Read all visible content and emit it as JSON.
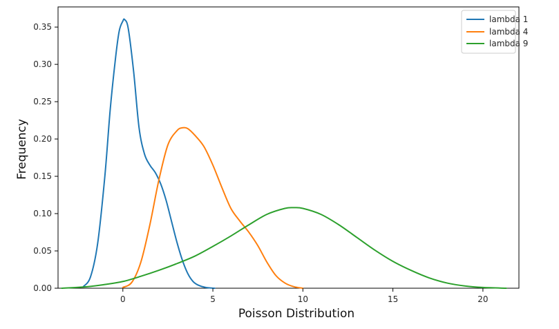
{
  "chart_data": {
    "type": "line",
    "title": "",
    "xlabel": "Poisson Distribution",
    "ylabel": "Frequency",
    "xlim": [
      -3.6,
      22
    ],
    "ylim": [
      0,
      0.377
    ],
    "x_ticks": [
      0,
      5,
      10,
      15,
      20
    ],
    "y_ticks": [
      0.0,
      0.05,
      0.1,
      0.15,
      0.2,
      0.25,
      0.3,
      0.35
    ],
    "x_tick_labels": [
      "0",
      "5",
      "10",
      "15",
      "20"
    ],
    "y_tick_labels": [
      "0.00",
      "0.05",
      "0.10",
      "0.15",
      "0.20",
      "0.25",
      "0.30",
      "0.35"
    ],
    "grid": false,
    "legend_position": "top-right",
    "series": [
      {
        "name": "lambda 1",
        "color": "#1f77b4",
        "x": [
          -2.2,
          -1.8,
          -1.4,
          -1.0,
          -0.7,
          -0.4,
          -0.2,
          0.0,
          0.1,
          0.3,
          0.6,
          0.9,
          1.2,
          1.5,
          1.8,
          2.1,
          2.4,
          2.7,
          3.0,
          3.3,
          3.6,
          3.9,
          4.2,
          4.6,
          5.1
        ],
        "y": [
          0.002,
          0.015,
          0.06,
          0.15,
          0.24,
          0.31,
          0.345,
          0.358,
          0.36,
          0.348,
          0.29,
          0.215,
          0.18,
          0.165,
          0.155,
          0.14,
          0.118,
          0.09,
          0.062,
          0.038,
          0.02,
          0.009,
          0.004,
          0.001,
          0.0
        ]
      },
      {
        "name": "lambda 4",
        "color": "#ff7f0e",
        "x": [
          0.0,
          0.5,
          1.0,
          1.5,
          2.0,
          2.5,
          3.0,
          3.3,
          3.6,
          4.0,
          4.5,
          5.0,
          5.5,
          6.0,
          6.5,
          7.0,
          7.5,
          8.0,
          8.5,
          9.0,
          9.5,
          10.0
        ],
        "y": [
          0.001,
          0.008,
          0.035,
          0.085,
          0.145,
          0.192,
          0.211,
          0.215,
          0.214,
          0.205,
          0.19,
          0.165,
          0.135,
          0.107,
          0.09,
          0.075,
          0.057,
          0.035,
          0.017,
          0.007,
          0.002,
          0.0
        ]
      },
      {
        "name": "lambda 9",
        "color": "#2ca02c",
        "x": [
          -3.4,
          -2.0,
          -1.0,
          0.0,
          1.0,
          2.0,
          3.0,
          4.0,
          5.0,
          6.0,
          7.0,
          8.0,
          9.0,
          9.5,
          10.0,
          11.0,
          12.0,
          13.0,
          14.0,
          15.0,
          16.0,
          17.0,
          18.0,
          19.0,
          20.0,
          21.3
        ],
        "y": [
          0.0,
          0.002,
          0.005,
          0.009,
          0.016,
          0.024,
          0.033,
          0.043,
          0.056,
          0.07,
          0.085,
          0.099,
          0.107,
          0.108,
          0.107,
          0.099,
          0.085,
          0.068,
          0.051,
          0.036,
          0.024,
          0.014,
          0.007,
          0.003,
          0.001,
          0.0
        ]
      }
    ]
  }
}
